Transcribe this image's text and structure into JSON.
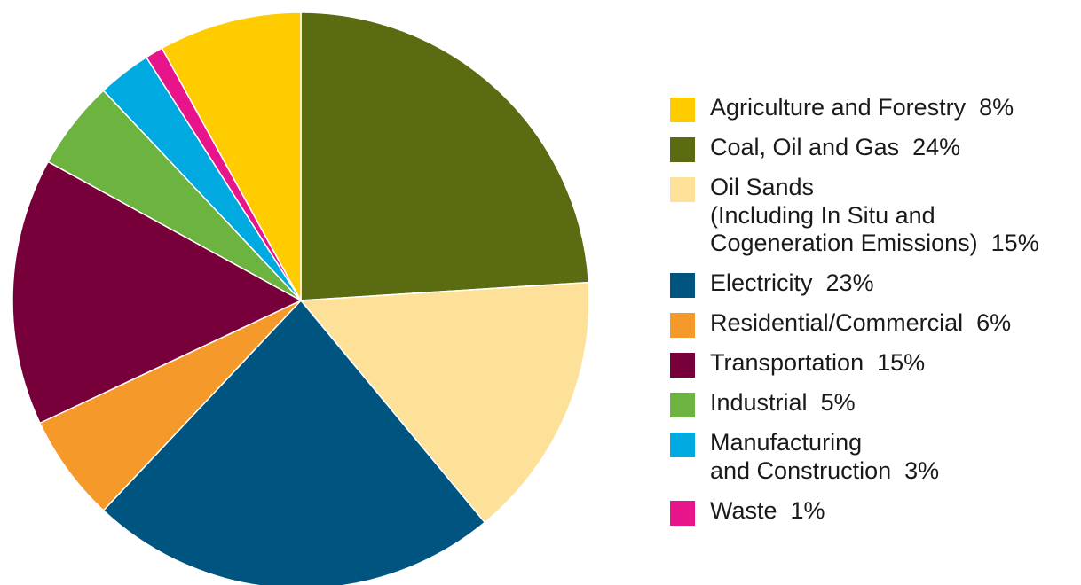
{
  "chart_data": {
    "type": "pie",
    "start_angle_deg": 0,
    "direction": "clockwise",
    "slices": [
      {
        "label": "Agriculture and Forestry",
        "value": 8,
        "value_label": "8%",
        "color": "#FFCC00"
      },
      {
        "label": "Coal, Oil and Gas",
        "value": 24,
        "value_label": "24%",
        "color": "#5A6B12"
      },
      {
        "label": "Oil Sands\n(Including In Situ and\nCogeneration Emissions)",
        "value": 15,
        "value_label": "15%",
        "color": "#FDE199"
      },
      {
        "label": "Electricity",
        "value": 23,
        "value_label": "23%",
        "color": "#005580"
      },
      {
        "label": "Residential/Commercial",
        "value": 6,
        "value_label": "6%",
        "color": "#F5992A"
      },
      {
        "label": "Transportation",
        "value": 15,
        "value_label": "15%",
        "color": "#78003A"
      },
      {
        "label": "Industrial",
        "value": 5,
        "value_label": "5%",
        "color": "#6DB33F"
      },
      {
        "label": "Manufacturing\nand Construction",
        "value": 3,
        "value_label": "3%",
        "color": "#00A9DF"
      },
      {
        "label": "Waste",
        "value": 1,
        "value_label": "1%",
        "color": "#E8148C"
      }
    ],
    "slice_order_clockwise_from_top": [
      "Coal, Oil and Gas",
      "Oil Sands\n(Including In Situ and\nCogeneration Emissions)",
      "Electricity",
      "Residential/Commercial",
      "Transportation",
      "Industrial",
      "Manufacturing\nand Construction",
      "Waste",
      "Agriculture and Forestry"
    ],
    "legend": {
      "placement": "right"
    }
  }
}
